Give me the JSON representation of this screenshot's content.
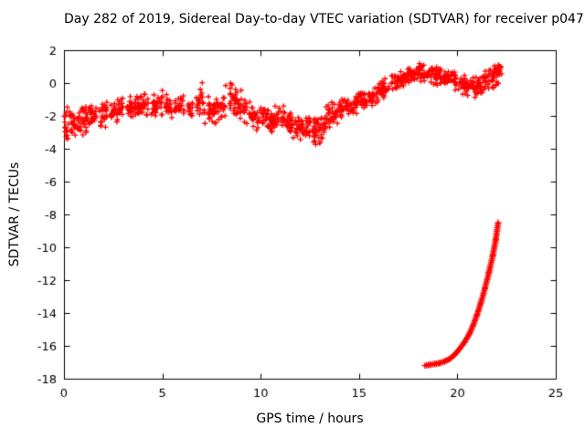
{
  "page": {
    "background": "#ffffff"
  },
  "chart_data": {
    "type": "scatter",
    "title": "Day 282 of 2019, Sidereal Day-to-day VTEC variation (SDTVAR) for receiver p047",
    "xlabel": "GPS time / hours",
    "ylabel": "SDTVAR / TECUs",
    "xlim": [
      0,
      25
    ],
    "ylim": [
      -18,
      2
    ],
    "xticks": [
      0,
      5,
      10,
      15,
      20,
      25
    ],
    "yticks": [
      2,
      0,
      -2,
      -4,
      -6,
      -8,
      -10,
      -12,
      -14,
      -16,
      -18
    ],
    "grid": false,
    "legend": "none",
    "marker": "plus",
    "color": "#ff0000",
    "axis_color": "#000000",
    "series": [
      {
        "name": "sidereal-vtec-band",
        "representation": "envelope",
        "points_per_hour": 60,
        "envelope": [
          [
            0.0,
            -3.8,
            -1.2
          ],
          [
            0.5,
            -3.6,
            -1.4
          ],
          [
            1.0,
            -3.5,
            -1.0
          ],
          [
            1.5,
            -3.0,
            -1.2
          ],
          [
            2.0,
            -2.8,
            -0.9
          ],
          [
            2.5,
            -2.6,
            -1.0
          ],
          [
            3.0,
            -2.2,
            -0.6
          ],
          [
            3.5,
            -2.4,
            -0.8
          ],
          [
            4.0,
            -2.1,
            -0.5
          ],
          [
            4.5,
            -2.2,
            -0.7
          ],
          [
            5.0,
            -2.0,
            -0.4
          ],
          [
            5.5,
            -2.3,
            -0.8
          ],
          [
            6.0,
            -2.1,
            -0.5
          ],
          [
            6.5,
            -2.5,
            -1.0
          ],
          [
            7.0,
            -2.4,
            0.3
          ],
          [
            7.5,
            -2.8,
            -0.8
          ],
          [
            8.0,
            -2.6,
            -0.6
          ],
          [
            8.5,
            -2.2,
            0.5
          ],
          [
            9.0,
            -2.6,
            -0.3
          ],
          [
            9.5,
            -2.9,
            -1.0
          ],
          [
            10.0,
            -3.0,
            -1.3
          ],
          [
            10.5,
            -3.2,
            -1.4
          ],
          [
            11.0,
            -3.0,
            -1.1
          ],
          [
            11.5,
            -3.5,
            -1.5
          ],
          [
            12.0,
            -3.8,
            -1.8
          ],
          [
            12.5,
            -3.7,
            -1.9
          ],
          [
            13.0,
            -3.8,
            -1.8
          ],
          [
            13.5,
            -3.1,
            -1.2
          ],
          [
            14.0,
            -2.5,
            -0.8
          ],
          [
            14.5,
            -2.1,
            -0.6
          ],
          [
            15.0,
            -1.8,
            -0.5
          ],
          [
            15.5,
            -1.6,
            -0.3
          ],
          [
            16.0,
            -1.2,
            0.1
          ],
          [
            16.5,
            -0.8,
            0.5
          ],
          [
            17.0,
            -0.5,
            0.8
          ],
          [
            17.5,
            -0.2,
            1.0
          ],
          [
            18.0,
            0.1,
            1.3
          ],
          [
            18.5,
            0.0,
            1.2
          ],
          [
            19.0,
            -0.2,
            1.2
          ],
          [
            19.5,
            -0.4,
            0.9
          ],
          [
            20.0,
            -0.6,
            0.8
          ],
          [
            20.5,
            -0.9,
            0.5
          ],
          [
            21.0,
            -1.1,
            0.4
          ],
          [
            21.5,
            -0.6,
            0.9
          ],
          [
            22.0,
            -0.3,
            1.5
          ],
          [
            22.3,
            0.4,
            1.7
          ]
        ],
        "gaps": [
          [
            1.65,
            1.78
          ],
          [
            2.2,
            2.38
          ],
          [
            3.05,
            3.2
          ],
          [
            4.3,
            4.45
          ],
          [
            5.05,
            5.18
          ],
          [
            5.5,
            5.62
          ],
          [
            6.1,
            6.3
          ],
          [
            6.55,
            6.72
          ],
          [
            7.18,
            7.32
          ],
          [
            8.25,
            8.4
          ],
          [
            9.3,
            9.42
          ],
          [
            13.9,
            14.0
          ],
          [
            15.4,
            15.5
          ],
          [
            16.55,
            16.65
          ],
          [
            19.95,
            20.05
          ]
        ]
      },
      {
        "name": "outlier-arc",
        "representation": "curve",
        "points": [
          [
            18.35,
            -17.2
          ],
          [
            18.6,
            -17.15
          ],
          [
            18.85,
            -17.1
          ],
          [
            19.1,
            -17.05
          ],
          [
            19.35,
            -16.95
          ],
          [
            19.6,
            -16.8
          ],
          [
            19.85,
            -16.55
          ],
          [
            20.1,
            -16.2
          ],
          [
            20.35,
            -15.8
          ],
          [
            20.6,
            -15.3
          ],
          [
            20.8,
            -14.75
          ],
          [
            21.0,
            -14.1
          ],
          [
            21.2,
            -13.35
          ],
          [
            21.4,
            -12.5
          ],
          [
            21.6,
            -11.55
          ],
          [
            21.8,
            -10.5
          ],
          [
            21.95,
            -9.55
          ],
          [
            22.07,
            -8.5
          ]
        ]
      }
    ]
  }
}
